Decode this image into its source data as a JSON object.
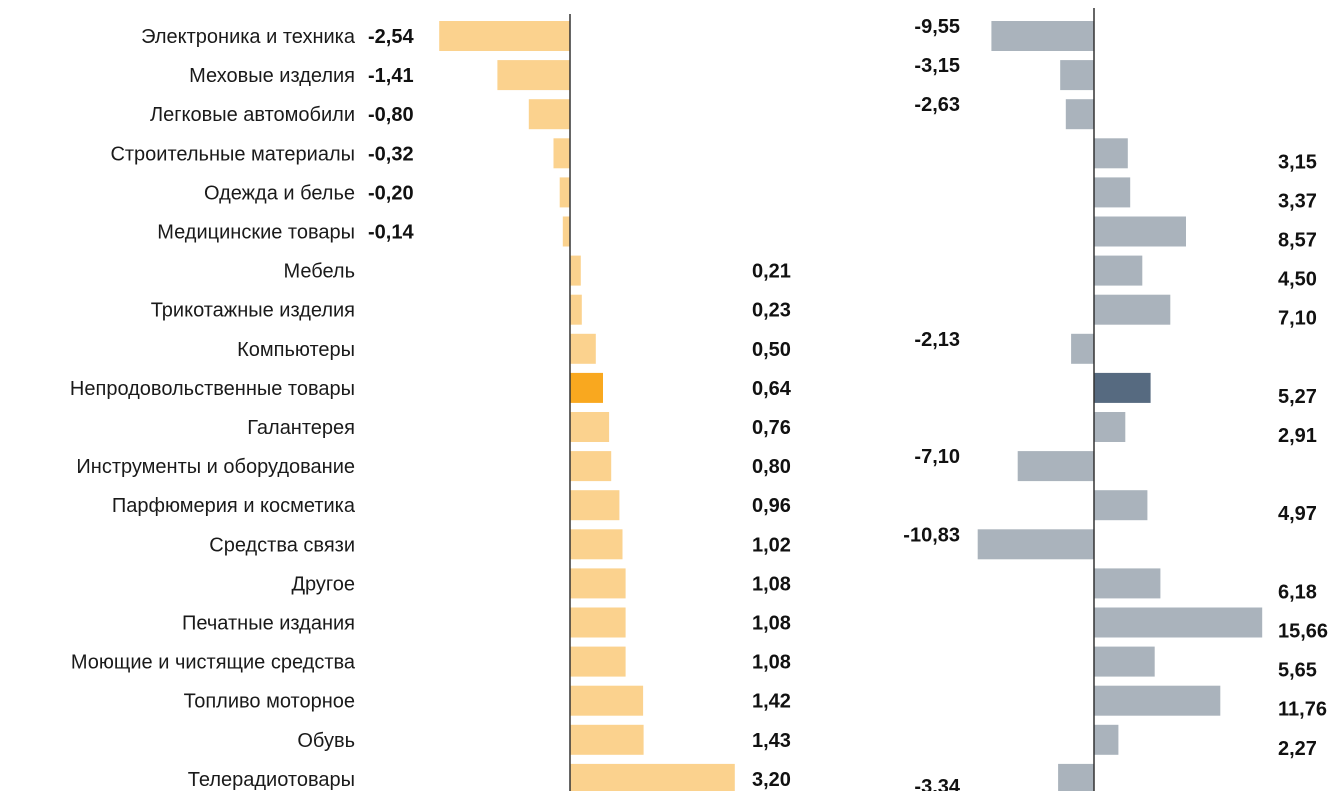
{
  "chart_data": [
    {
      "type": "bar",
      "orientation": "horizontal",
      "categories": [
        "Электроника и техника",
        "Меховые изделия",
        "Легковые автомобили",
        "Строительные материалы",
        "Одежда и белье",
        "Медицинские товары",
        "Мебель",
        "Трикотажные изделия",
        "Компьютеры",
        "Непродовольственные товары",
        "Галантерея",
        "Инструменты и оборудование",
        "Парфюмерия и косметика",
        "Средства связи",
        "Другое",
        "Печатные издания",
        "Моющие и чистящие средства",
        "Топливо моторное",
        "Обувь",
        "Телерадиотовары"
      ],
      "values": [
        -2.54,
        -1.41,
        -0.8,
        -0.32,
        -0.2,
        -0.14,
        0.21,
        0.23,
        0.5,
        0.64,
        0.76,
        0.8,
        0.96,
        1.02,
        1.08,
        1.08,
        1.08,
        1.42,
        1.43,
        3.2
      ],
      "value_labels": [
        "-2,54",
        "-1,41",
        "-0,80",
        "-0,32",
        "-0,20",
        "-0,14",
        "0,21",
        "0,23",
        "0,50",
        "0,64",
        "0,76",
        "0,80",
        "0,96",
        "1,02",
        "1,08",
        "1,08",
        "1,08",
        "1,42",
        "1,43",
        "3,20"
      ],
      "highlight_index": 9,
      "colors": {
        "bar": "#fbd28e",
        "highlight": "#f9a81f",
        "axis": "#333333"
      },
      "grid": false
    },
    {
      "type": "bar",
      "orientation": "horizontal",
      "values": [
        -9.55,
        -3.15,
        -2.63,
        3.15,
        3.37,
        8.57,
        4.5,
        7.1,
        -2.13,
        5.27,
        2.91,
        -7.1,
        4.97,
        -10.83,
        6.18,
        15.66,
        5.65,
        11.76,
        2.27,
        -3.34
      ],
      "value_labels": [
        "-9,55",
        "-3,15",
        "-2,63",
        "3,15",
        "3,37",
        "8,57",
        "4,50",
        "7,10",
        "-2,13",
        "5,27",
        "2,91",
        "-7,10",
        "4,97",
        "-10,83",
        "6,18",
        "15,66",
        "5,65",
        "11,76",
        "2,27",
        "-3,34"
      ],
      "highlight_index": 9,
      "colors": {
        "bar": "#aab3bc",
        "highlight": "#566a80",
        "axis": "#333333"
      },
      "grid": false
    }
  ]
}
